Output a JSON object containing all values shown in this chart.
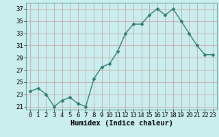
{
  "x": [
    0,
    1,
    2,
    3,
    4,
    5,
    6,
    7,
    8,
    9,
    10,
    11,
    12,
    13,
    14,
    15,
    16,
    17,
    18,
    19,
    20,
    21,
    22,
    23
  ],
  "y": [
    23.5,
    24.0,
    23.0,
    21.0,
    22.0,
    22.5,
    21.5,
    21.0,
    25.5,
    27.5,
    28.0,
    30.0,
    33.0,
    34.5,
    34.5,
    36.0,
    37.0,
    36.0,
    37.0,
    35.0,
    33.0,
    31.0,
    29.5,
    29.5
  ],
  "line_color": "#2e7d6e",
  "marker": "D",
  "marker_size": 2,
  "linewidth": 1.0,
  "bg_color": "#caeeed",
  "grid_color": "#c8a8a8",
  "xlabel": "Humidex (Indice chaleur)",
  "xlim": [
    -0.5,
    23.5
  ],
  "ylim": [
    20.5,
    38
  ],
  "yticks": [
    21,
    23,
    25,
    27,
    29,
    31,
    33,
    35,
    37
  ],
  "xticks": [
    0,
    1,
    2,
    3,
    4,
    5,
    6,
    7,
    8,
    9,
    10,
    11,
    12,
    13,
    14,
    15,
    16,
    17,
    18,
    19,
    20,
    21,
    22,
    23
  ],
  "xlabel_fontsize": 7.5,
  "tick_fontsize": 6.5
}
